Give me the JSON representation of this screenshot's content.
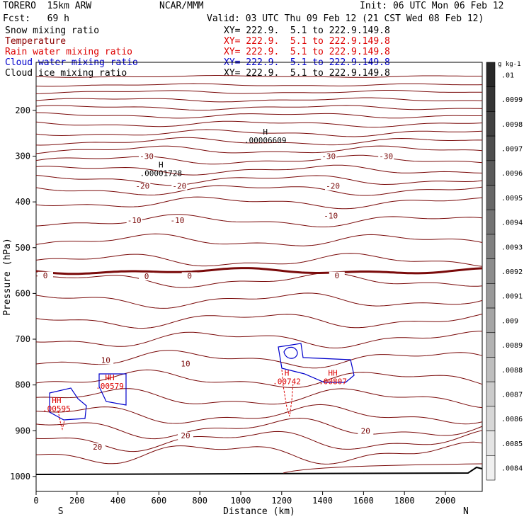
{
  "header": {
    "model": "TORERO  15km ARW",
    "center": "NCAR/MMM",
    "init": "Init: 06 UTC Mon 06 Feb 12",
    "fcst": "Fcst:   69 h",
    "valid": "Valid: 03 UTC Thu 09 Feb 12 (21 CST Wed 08 Feb 12)"
  },
  "fields": [
    {
      "name": "Snow mixing ratio",
      "color": "#000000"
    },
    {
      "name": "Temperature",
      "color": "#8b0000"
    },
    {
      "name": "Rain water mixing ratio",
      "color": "#dd0000"
    },
    {
      "name": "Cloud water mixing ratio",
      "color": "#0000cc"
    },
    {
      "name": "Cloud ice mixing ratio",
      "color": "#000000"
    }
  ],
  "cross_section": "XY= 222.9.  5.1 to 222.9.149.8",
  "colorbar": {
    "unit": "g kg-1",
    "labels": [
      ".01",
      ".0099",
      ".0098",
      ".0097",
      ".0096",
      ".0095",
      ".0094",
      ".0093",
      ".0092",
      ".0091",
      ".009",
      ".0089",
      ".0088",
      ".0087",
      ".0086",
      ".0085",
      ".0084"
    ]
  },
  "chart_data": {
    "type": "line",
    "title": "",
    "xlabel": "Distance (km)",
    "ylabel": "Pressure (hPa)",
    "xlim": [
      0,
      2180
    ],
    "ylim": [
      1050,
      100
    ],
    "x_ticks": [
      0,
      200,
      400,
      600,
      800,
      1000,
      1200,
      1400,
      1600,
      1800,
      2000
    ],
    "y_ticks": [
      200,
      300,
      400,
      500,
      600,
      700,
      800,
      900,
      1000
    ],
    "x_end_labels": {
      "left": "S",
      "right": "N"
    },
    "isotherm_labels": [
      {
        "text": "-30",
        "x": 540,
        "p": 305
      },
      {
        "text": "-30",
        "x": 1430,
        "p": 305
      },
      {
        "text": "-30",
        "x": 1710,
        "p": 305
      },
      {
        "text": "-20",
        "x": 520,
        "p": 370
      },
      {
        "text": "-20",
        "x": 700,
        "p": 370
      },
      {
        "text": "-20",
        "x": 1450,
        "p": 370
      },
      {
        "text": "-10",
        "x": 480,
        "p": 445
      },
      {
        "text": "-10",
        "x": 690,
        "p": 445
      },
      {
        "text": "-10",
        "x": 1440,
        "p": 435
      },
      {
        "text": "0",
        "x": 45,
        "p": 565
      },
      {
        "text": "0",
        "x": 540,
        "p": 567
      },
      {
        "text": "0",
        "x": 750,
        "p": 566
      },
      {
        "text": "0",
        "x": 1470,
        "p": 565
      },
      {
        "text": "10",
        "x": 340,
        "p": 750
      },
      {
        "text": "10",
        "x": 730,
        "p": 758
      },
      {
        "text": "20",
        "x": 730,
        "p": 915
      },
      {
        "text": "20",
        "x": 300,
        "p": 940
      },
      {
        "text": "20",
        "x": 1610,
        "p": 905
      }
    ],
    "maxima": [
      {
        "mark": "H",
        "value": ".00006609",
        "x": 1120,
        "p": 268,
        "color": "#000000"
      },
      {
        "mark": "H",
        "value": ".00001728",
        "x": 610,
        "p": 340,
        "color": "#000000"
      },
      {
        "mark": "HH",
        "value": ".00595",
        "x": 100,
        "p": 855,
        "color": "#dd0000"
      },
      {
        "mark": "HH",
        "value": ".00579",
        "x": 360,
        "p": 805,
        "color": "#dd0000"
      },
      {
        "mark": "H",
        "value": ".00742",
        "x": 1225,
        "p": 795,
        "color": "#dd0000"
      },
      {
        "mark": "HH",
        "value": ".00807",
        "x": 1450,
        "p": 795,
        "color": "#dd0000"
      }
    ]
  }
}
